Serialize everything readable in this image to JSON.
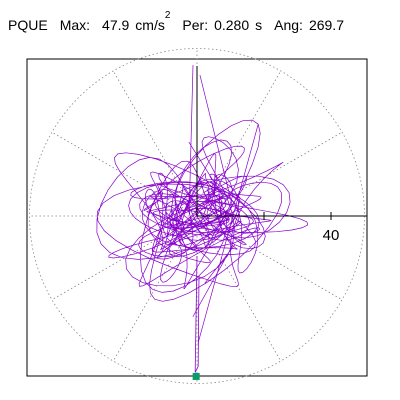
{
  "header": {
    "station": "PQUE",
    "max_label": "Max:",
    "max_value": "47.9",
    "max_unit": "cm/s",
    "max_unit_exp": "2",
    "per_label": "Per:",
    "per_value": "0.280",
    "per_unit": "s",
    "ang_label": "Ang:",
    "ang_value": "269.7"
  },
  "chart_data": {
    "type": "polar-particle-motion",
    "radial_ticks": [
      {
        "value": 20,
        "label": ""
      },
      {
        "value": 40,
        "label": "40"
      }
    ],
    "radial_max": 50,
    "angle_gridlines_deg": [
      0,
      30,
      60,
      90,
      120,
      150,
      180,
      210,
      240,
      270,
      300,
      330
    ],
    "max_amplitude": 47.9,
    "max_direction_deg": 269.7,
    "end_marker": {
      "r": 47.9,
      "angle_deg": 269.7
    },
    "colors": {
      "trace": "#8800cc",
      "grid": "#888888",
      "marker": "#0a9a6a",
      "frame": "#000000"
    }
  }
}
